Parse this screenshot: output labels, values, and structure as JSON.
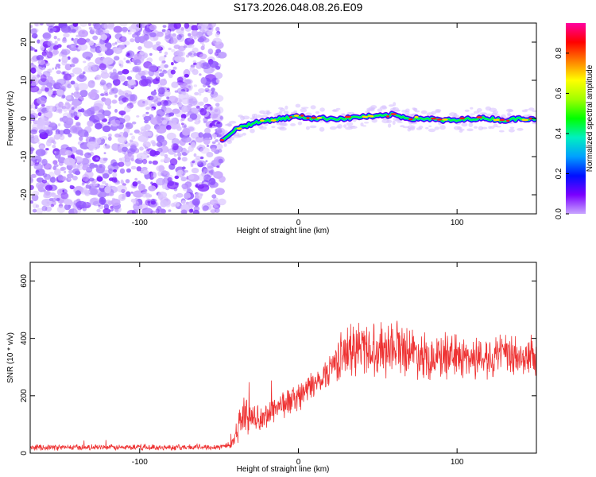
{
  "title": "S173.2026.048.08.26.E09",
  "chart_data": [
    {
      "type": "heatmap",
      "xlabel": "Height of straight line (km)",
      "ylabel": "Frequency (Hz)",
      "xlim": [
        -169,
        150
      ],
      "ylim": [
        -25,
        25
      ],
      "x_ticks": [
        -100,
        0,
        100
      ],
      "y_ticks": [
        -20,
        -10,
        0,
        10,
        20
      ],
      "noise_region_x": [
        -169,
        -48
      ],
      "ridge": {
        "x": [
          -48,
          -45,
          -40,
          -35,
          -30,
          -25,
          -20,
          -10,
          0,
          10,
          20,
          30,
          40,
          50,
          60,
          70,
          80,
          90,
          100,
          110,
          120,
          130,
          140,
          150
        ],
        "y": [
          -6,
          -4.5,
          -3,
          -2,
          -1.5,
          -1,
          -0.5,
          0,
          0.5,
          0,
          0,
          0,
          0.5,
          0.5,
          1,
          0,
          0,
          -0.5,
          -0.5,
          0,
          0,
          -0.5,
          0,
          0
        ]
      },
      "colorbar": {
        "label": "Normalized spectral amplitude",
        "range": [
          0,
          0.95
        ],
        "ticks": [
          0.0,
          0.2,
          0.4,
          0.6,
          0.8
        ],
        "colormap": [
          "#c9a6ff",
          "#7a00ff",
          "#0010ff",
          "#00a0ff",
          "#00f0c0",
          "#00ff00",
          "#a0ff00",
          "#ffff00",
          "#ff8000",
          "#ff0000",
          "#ff00a0"
        ]
      }
    },
    {
      "type": "line",
      "xlabel": "Height of straight line (km)",
      "ylabel": "SNR (10 * v/v)",
      "xlim": [
        -169,
        150
      ],
      "ylim": [
        0,
        665
      ],
      "x_ticks": [
        -100,
        0,
        100
      ],
      "y_ticks": [
        0,
        200,
        400,
        600
      ],
      "color": "#ee3333",
      "series": [
        {
          "x": [
            -169,
            -120,
            -80,
            -50,
            -42,
            -38,
            -35,
            -30,
            -25,
            -20,
            -15,
            -10,
            -5,
            0,
            5,
            10,
            15,
            20,
            25,
            30,
            35,
            40,
            50,
            60,
            70,
            80,
            90,
            100,
            110,
            120,
            130,
            140,
            150
          ],
          "y": [
            20,
            20,
            20,
            22,
            30,
            90,
            140,
            120,
            110,
            130,
            160,
            170,
            180,
            200,
            220,
            240,
            260,
            300,
            330,
            350,
            360,
            370,
            360,
            380,
            360,
            340,
            330,
            340,
            330,
            340,
            340,
            330,
            340
          ],
          "spread": [
            12,
            12,
            12,
            12,
            20,
            60,
            70,
            60,
            50,
            60,
            60,
            60,
            60,
            60,
            60,
            60,
            60,
            70,
            90,
            110,
            120,
            120,
            110,
            120,
            100,
            100,
            90,
            90,
            90,
            90,
            90,
            90,
            90
          ]
        }
      ]
    }
  ]
}
